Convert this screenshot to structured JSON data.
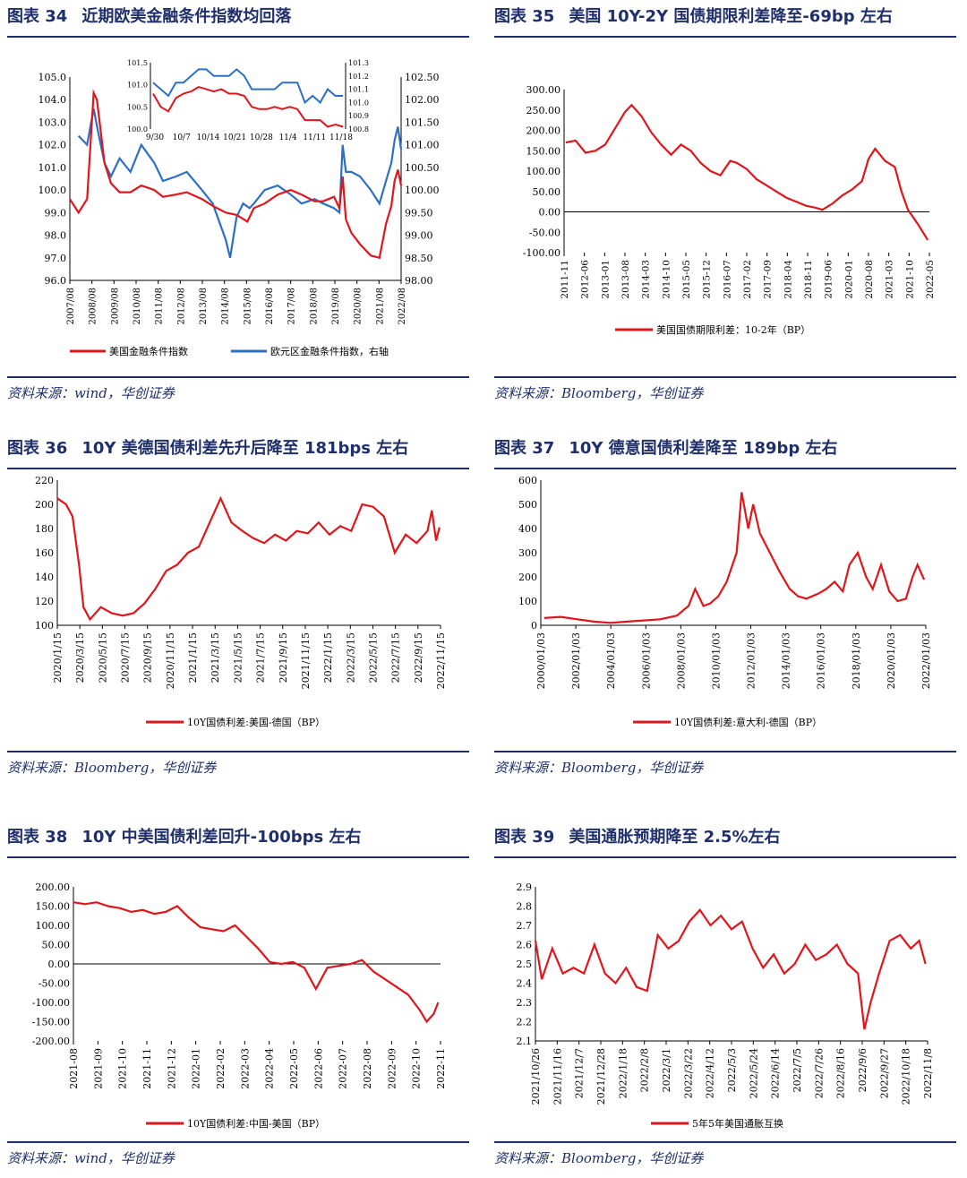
{
  "colors": {
    "red": "#e0161d",
    "blue": "#2d6fc2",
    "navy": "#1f2f6b"
  },
  "panels": [
    {
      "fig_label": "图表 34",
      "title": "近期欧美金融条件指数均回落",
      "source": "资料来源：wind，华创证券"
    },
    {
      "fig_label": "图表 35",
      "title": "美国 10Y-2Y 国债期限利差降至-69bp 左右",
      "source": "资料来源：Bloomberg，华创证券"
    },
    {
      "fig_label": "图表 36",
      "title": "10Y 美德国债利差先升后降至 181bps 左右",
      "source": "资料来源：Bloomberg，华创证券"
    },
    {
      "fig_label": "图表 37",
      "title": "10Y 德意国债利差降至 189bp 左右",
      "source": "资料来源：Bloomberg，华创证券"
    },
    {
      "fig_label": "图表 38",
      "title": "10Y 中美国债利差回升-100bps 左右",
      "source": "资料来源：wind，华创证券"
    },
    {
      "fig_label": "图表 39",
      "title": "美国通胀预期降至 2.5%左右",
      "source": "资料来源：Bloomberg，华创证券"
    }
  ],
  "chart_data": [
    {
      "type": "line",
      "title": "近期欧美金融条件指数均回落",
      "x_ticks": [
        "2007/08",
        "2008/08",
        "2009/08",
        "2010/08",
        "2011/08",
        "2012/08",
        "2013/08",
        "2014/08",
        "2015/08",
        "2016/08",
        "2017/08",
        "2018/08",
        "2019/08",
        "2020/08",
        "2021/08",
        "2022/08"
      ],
      "y_left": {
        "ticks": [
          "105.0",
          "104.0",
          "103.0",
          "102.0",
          "101.0",
          "100.0",
          "99.0",
          "98.0",
          "97.0",
          "96.0"
        ],
        "ylim": [
          96,
          105
        ]
      },
      "y_right": {
        "ticks": [
          "102.50",
          "102.00",
          "101.50",
          "101.00",
          "100.50",
          "100.00",
          "99.50",
          "99.00",
          "98.50",
          "98.00"
        ],
        "ylim": [
          98,
          102.5
        ]
      },
      "series": [
        {
          "name": "美国金融条件指数",
          "axis": "left",
          "color": "#e0161d",
          "x": [
            2007.6,
            2008.0,
            2008.4,
            2008.7,
            2008.85,
            2009.0,
            2009.2,
            2009.5,
            2009.9,
            2010.4,
            2010.9,
            2011.5,
            2011.9,
            2012.5,
            2013.0,
            2013.7,
            2014.2,
            2014.8,
            2015.3,
            2015.8,
            2016.1,
            2016.6,
            2017.2,
            2017.8,
            2018.3,
            2018.9,
            2019.3,
            2019.8,
            2020.05,
            2020.2,
            2020.35,
            2020.6,
            2021.0,
            2021.5,
            2021.9,
            2022.2,
            2022.45,
            2022.6,
            2022.75,
            2022.9
          ],
          "y": [
            99.6,
            99.0,
            99.6,
            104.3,
            104.0,
            102.8,
            101.2,
            100.3,
            99.9,
            99.9,
            100.2,
            100.0,
            99.7,
            99.8,
            99.9,
            99.6,
            99.3,
            99.0,
            98.9,
            98.6,
            99.2,
            99.4,
            99.8,
            100.0,
            99.8,
            99.5,
            99.5,
            99.7,
            99.2,
            100.6,
            98.7,
            98.1,
            97.6,
            97.1,
            97.0,
            98.5,
            99.3,
            100.4,
            100.9,
            100.2
          ]
        },
        {
          "name": "欧元区金融条件指数，右轴",
          "axis": "right",
          "color": "#2d6fc2",
          "x": [
            2008.0,
            2008.4,
            2008.7,
            2008.9,
            2009.2,
            2009.5,
            2009.9,
            2010.4,
            2010.9,
            2011.5,
            2011.9,
            2012.5,
            2013.0,
            2013.7,
            2014.2,
            2014.8,
            2015.0,
            2015.3,
            2015.6,
            2015.9,
            2016.1,
            2016.6,
            2017.2,
            2017.8,
            2018.3,
            2018.9,
            2019.3,
            2019.8,
            2020.05,
            2020.2,
            2020.35,
            2020.6,
            2021.0,
            2021.5,
            2021.9,
            2022.2,
            2022.45,
            2022.6,
            2022.75,
            2022.9
          ],
          "y": [
            101.2,
            101.0,
            101.8,
            101.3,
            100.6,
            100.3,
            100.7,
            100.4,
            101.0,
            100.6,
            100.2,
            100.3,
            100.4,
            100.0,
            99.7,
            98.9,
            98.5,
            99.4,
            99.7,
            99.6,
            99.7,
            100.0,
            100.1,
            99.9,
            99.7,
            99.8,
            99.7,
            99.6,
            99.5,
            101.0,
            100.4,
            100.4,
            100.3,
            100.0,
            99.7,
            100.2,
            100.6,
            101.1,
            101.4,
            100.9
          ]
        }
      ],
      "inset": {
        "x_ticks": [
          "9/30",
          "10/7",
          "10/14",
          "10/21",
          "10/28",
          "11/4",
          "11/11",
          "11/18"
        ],
        "y_left": {
          "ticks": [
            "101.5",
            "101.0",
            "100.5",
            "100.0"
          ],
          "ylim": [
            100,
            101.5
          ]
        },
        "y_right": {
          "ticks": [
            "101.3",
            "101.2",
            "101.1",
            "101.0",
            "100.9",
            "100.8"
          ],
          "ylim": [
            100.8,
            101.3
          ]
        },
        "red": [
          100.8,
          100.5,
          100.4,
          100.7,
          100.8,
          100.85,
          100.95,
          100.9,
          100.85,
          100.9,
          100.8,
          100.8,
          100.75,
          100.5,
          100.45,
          100.45,
          100.5,
          100.45,
          100.5,
          100.45,
          100.2,
          100.2,
          100.2,
          100.05,
          100.1,
          100.05
        ],
        "blue": [
          101.15,
          101.1,
          101.05,
          101.15,
          101.15,
          101.2,
          101.25,
          101.25,
          101.2,
          101.2,
          101.2,
          101.25,
          101.2,
          101.1,
          101.1,
          101.1,
          101.1,
          101.15,
          101.15,
          101.15,
          101.0,
          101.05,
          101.0,
          101.1,
          101.05,
          101.05
        ]
      }
    },
    {
      "type": "line",
      "title": "美国 10Y-2Y 国债期限利差降至-69bp 左右",
      "x_ticks": [
        "2011-11",
        "2012-06",
        "2013-01",
        "2013-08",
        "2014-03",
        "2014-10",
        "2015-05",
        "2015-12",
        "2016-07",
        "2017-02",
        "2017-09",
        "2018-04",
        "2018-11",
        "2019-06",
        "2020-01",
        "2020-08",
        "2021-03",
        "2021-10",
        "2022-05"
      ],
      "y_ticks": [
        "300.00",
        "250.00",
        "200.00",
        "150.00",
        "100.00",
        "50.00",
        "0.00",
        "-50.00",
        "-100.00"
      ],
      "ylim": [
        -100,
        300
      ],
      "series": [
        {
          "name": "美国国债期限利差：10-2年（BP）",
          "color": "#e0161d",
          "x": [
            2011.9,
            2012.2,
            2012.5,
            2012.8,
            2013.1,
            2013.4,
            2013.7,
            2013.9,
            2014.2,
            2014.5,
            2014.8,
            2015.1,
            2015.4,
            2015.7,
            2016.0,
            2016.3,
            2016.6,
            2016.9,
            2017.1,
            2017.4,
            2017.7,
            2018.0,
            2018.3,
            2018.6,
            2018.9,
            2019.2,
            2019.5,
            2019.7,
            2020.0,
            2020.3,
            2020.6,
            2020.9,
            2021.1,
            2021.3,
            2021.6,
            2021.9,
            2022.1,
            2022.3,
            2022.6,
            2022.9
          ],
          "y": [
            170,
            175,
            145,
            150,
            165,
            205,
            245,
            262,
            235,
            195,
            165,
            140,
            165,
            150,
            120,
            100,
            90,
            125,
            120,
            105,
            80,
            65,
            50,
            35,
            25,
            15,
            10,
            5,
            20,
            40,
            55,
            75,
            130,
            155,
            125,
            110,
            50,
            5,
            -30,
            -69
          ]
        }
      ]
    },
    {
      "type": "line",
      "title": "10Y 美德国债利差先升后降至 181bps 左右",
      "x_ticks": [
        "2020/1/15",
        "2020/3/15",
        "2020/5/15",
        "2020/7/15",
        "2020/9/15",
        "2020/11/15",
        "2021/1/15",
        "2021/3/15",
        "2021/5/15",
        "2021/7/15",
        "2021/9/15",
        "2021/11/15",
        "2022/1/15",
        "2022/3/15",
        "2022/5/15",
        "2022/7/15",
        "2022/9/15",
        "2022/11/15"
      ],
      "y_ticks": [
        "220",
        "200",
        "180",
        "160",
        "140",
        "120",
        "100"
      ],
      "ylim": [
        100,
        220
      ],
      "series": [
        {
          "name": "10Y国债利差:美国-德国（BP）",
          "color": "#e0161d",
          "x": [
            0,
            0.8,
            1.4,
            2.0,
            2.4,
            3.0,
            4.0,
            5.0,
            6.0,
            7.0,
            8.0,
            9.0,
            10.0,
            11.0,
            12.0,
            13.0,
            14.0,
            15.0,
            16.0,
            17.0,
            18.0,
            19.0,
            20.0,
            21.0,
            22.0,
            23.0,
            24.0,
            25.0,
            26.0,
            27.0,
            28.0,
            29.0,
            30.0,
            31.0,
            32.0,
            33.0,
            34.0,
            34.4,
            34.8,
            35.1
          ],
          "y": [
            205,
            200,
            190,
            150,
            115,
            105,
            115,
            110,
            108,
            110,
            118,
            130,
            145,
            150,
            160,
            165,
            185,
            205,
            185,
            178,
            172,
            168,
            175,
            170,
            178,
            176,
            185,
            175,
            182,
            178,
            200,
            198,
            190,
            160,
            175,
            168,
            178,
            195,
            170,
            181
          ]
        }
      ]
    },
    {
      "type": "line",
      "title": "10Y 德意国债利差降至 189bp 左右",
      "x_ticks": [
        "2000/01/03",
        "2002/01/03",
        "2004/01/03",
        "2006/01/03",
        "2008/01/03",
        "2010/01/03",
        "2012/01/03",
        "2014/01/03",
        "2016/01/03",
        "2018/01/03",
        "2020/01/03",
        "2022/01/03"
      ],
      "y_ticks": [
        "600",
        "500",
        "400",
        "300",
        "200",
        "100",
        "0"
      ],
      "ylim": [
        0,
        600
      ],
      "series": [
        {
          "name": "10Y国债利差:意大利-德国（BP）",
          "color": "#e0161d",
          "x": [
            2000.0,
            2001.0,
            2002.0,
            2003.0,
            2004.0,
            2005.0,
            2006.0,
            2007.0,
            2008.0,
            2008.7,
            2009.1,
            2009.6,
            2010.0,
            2010.5,
            2011.0,
            2011.6,
            2011.9,
            2012.3,
            2012.6,
            2013.0,
            2013.6,
            2014.2,
            2014.8,
            2015.3,
            2015.8,
            2016.5,
            2017.0,
            2017.5,
            2018.0,
            2018.4,
            2018.9,
            2019.4,
            2019.8,
            2020.3,
            2020.8,
            2021.3,
            2021.8,
            2022.2,
            2022.5,
            2022.9
          ],
          "y": [
            30,
            35,
            25,
            15,
            10,
            15,
            20,
            25,
            40,
            80,
            150,
            80,
            90,
            120,
            180,
            300,
            550,
            400,
            500,
            380,
            300,
            220,
            150,
            120,
            110,
            130,
            150,
            180,
            140,
            250,
            300,
            200,
            150,
            250,
            140,
            100,
            110,
            200,
            250,
            189
          ]
        }
      ]
    },
    {
      "type": "line",
      "title": "10Y 中美国债利差回升-100bps 左右",
      "x_ticks": [
        "2021-08",
        "2021-09",
        "2021-10",
        "2021-11",
        "2021-12",
        "2022-01",
        "2022-02",
        "2022-03",
        "2022-04",
        "2022-05",
        "2022-06",
        "2022-07",
        "2022-08",
        "2022-09",
        "2022-10",
        "2022-11"
      ],
      "y_ticks": [
        "200.00",
        "150.00",
        "100.00",
        "50.00",
        "0.00",
        "-50.00",
        "-100.00",
        "-150.00",
        "-200.00"
      ],
      "ylim": [
        -200,
        200
      ],
      "series": [
        {
          "name": "10Y国债利差:中国-美国（BP）",
          "color": "#e0161d",
          "x": [
            0,
            0.5,
            1.0,
            1.5,
            2.0,
            2.5,
            3.0,
            3.5,
            4.0,
            4.5,
            5.0,
            5.5,
            6.0,
            6.5,
            7.0,
            7.5,
            8.0,
            8.5,
            9.0,
            9.5,
            10.0,
            10.5,
            11.0,
            11.5,
            12.0,
            12.5,
            13.0,
            13.5,
            14.0,
            14.5,
            15.0,
            15.3,
            15.6,
            15.8
          ],
          "y": [
            160,
            155,
            160,
            150,
            145,
            135,
            140,
            130,
            135,
            150,
            120,
            95,
            90,
            85,
            100,
            70,
            40,
            5,
            0,
            5,
            -10,
            -65,
            -10,
            -5,
            0,
            10,
            -20,
            -40,
            -60,
            -80,
            -120,
            -150,
            -130,
            -100
          ]
        }
      ]
    },
    {
      "type": "line",
      "title": "美国通胀预期降至 2.5%左右",
      "x_ticks": [
        "2021/10/26",
        "2021/11/16",
        "2021/12/7",
        "2021/12/28",
        "2022/1/18",
        "2022/2/8",
        "2022/3/1",
        "2022/3/22",
        "2022/4/12",
        "2022/5/3",
        "2022/5/24",
        "2022/6/14",
        "2022/7/5",
        "2022/7/26",
        "2022/8/16",
        "2022/9/6",
        "2022/9/27",
        "2022/10/18",
        "2022/11/8"
      ],
      "y_ticks": [
        "2.9",
        "2.8",
        "2.7",
        "2.6",
        "2.5",
        "2.4",
        "2.3",
        "2.2",
        "2.1"
      ],
      "ylim": [
        2.1,
        2.9
      ],
      "series": [
        {
          "name": "5年5年美国通胀互换",
          "color": "#e0161d",
          "x": [
            0,
            0.3,
            0.8,
            1.3,
            1.8,
            2.3,
            2.8,
            3.3,
            3.8,
            4.3,
            4.8,
            5.3,
            5.8,
            6.3,
            6.8,
            7.3,
            7.8,
            8.3,
            8.8,
            9.3,
            9.8,
            10.3,
            10.8,
            11.3,
            11.8,
            12.3,
            12.8,
            13.3,
            13.8,
            14.3,
            14.8,
            15.3,
            15.6,
            15.9,
            16.3,
            16.8,
            17.3,
            17.8,
            18.2,
            18.5
          ],
          "y": [
            2.62,
            2.42,
            2.58,
            2.45,
            2.48,
            2.45,
            2.6,
            2.45,
            2.4,
            2.48,
            2.38,
            2.36,
            2.65,
            2.58,
            2.62,
            2.72,
            2.78,
            2.7,
            2.75,
            2.68,
            2.72,
            2.58,
            2.48,
            2.55,
            2.45,
            2.5,
            2.6,
            2.52,
            2.55,
            2.6,
            2.5,
            2.45,
            2.16,
            2.3,
            2.45,
            2.62,
            2.65,
            2.58,
            2.62,
            2.5
          ]
        }
      ]
    }
  ]
}
